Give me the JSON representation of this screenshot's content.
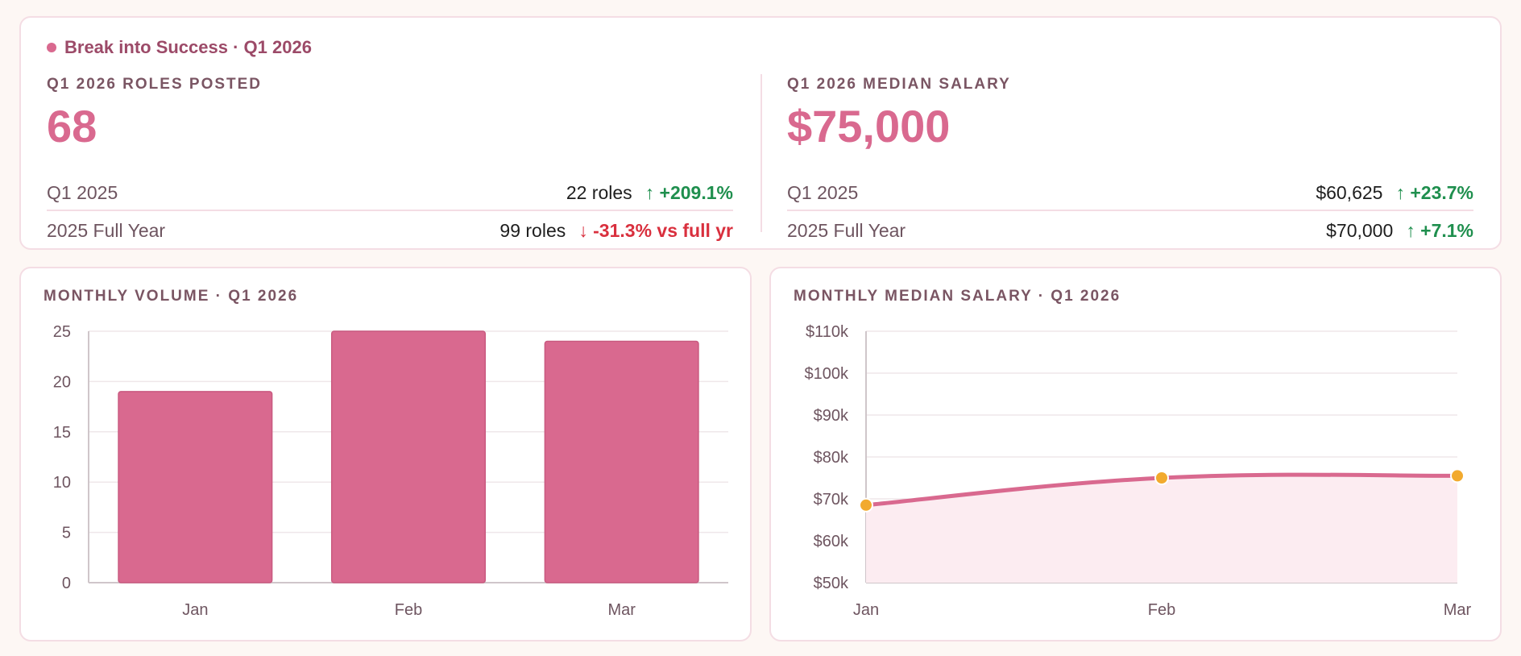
{
  "header": {
    "brand": "Break into Success · Q1 2026"
  },
  "roles": {
    "label": "Q1 2026 ROLES POSTED",
    "value": "68",
    "comparisons": [
      {
        "label": "Q1 2025",
        "value": "22 roles",
        "delta": "↑ +209.1%",
        "direction": "up"
      },
      {
        "label": "2025 Full Year",
        "value": "99 roles",
        "delta": "↓ -31.3% vs full yr",
        "direction": "down"
      }
    ]
  },
  "salary": {
    "label": "Q1 2026 MEDIAN SALARY",
    "value": "$75,000",
    "comparisons": [
      {
        "label": "Q1 2025",
        "value": "$60,625",
        "delta": "↑ +23.7%",
        "direction": "up"
      },
      {
        "label": "2025 Full Year",
        "value": "$70,000",
        "delta": "↑ +7.1%",
        "direction": "up"
      }
    ]
  },
  "colors": {
    "accent": "#d9698f",
    "point": "#f2aa2e",
    "up": "#1f8f4e",
    "down": "#d9303e"
  },
  "chart_data": [
    {
      "type": "bar",
      "title": "MONTHLY VOLUME · Q1 2026",
      "categories": [
        "Jan",
        "Feb",
        "Mar"
      ],
      "values": [
        19,
        25,
        24
      ],
      "ylim": [
        0,
        25
      ],
      "yticks": [
        0,
        5,
        10,
        15,
        20,
        25
      ],
      "ytick_labels": [
        "0",
        "5",
        "10",
        "15",
        "20",
        "25"
      ],
      "grid": true
    },
    {
      "type": "line",
      "title": "MONTHLY MEDIAN SALARY · Q1 2026",
      "categories": [
        "Jan",
        "Feb",
        "Mar"
      ],
      "values": [
        68500,
        75000,
        75500
      ],
      "ylim": [
        50000,
        110000
      ],
      "yticks": [
        50000,
        60000,
        70000,
        80000,
        90000,
        100000,
        110000
      ],
      "ytick_labels": [
        "$50k",
        "$60k",
        "$70k",
        "$80k",
        "$90k",
        "$100k",
        "$110k"
      ],
      "grid": true,
      "area_fill": true
    }
  ]
}
